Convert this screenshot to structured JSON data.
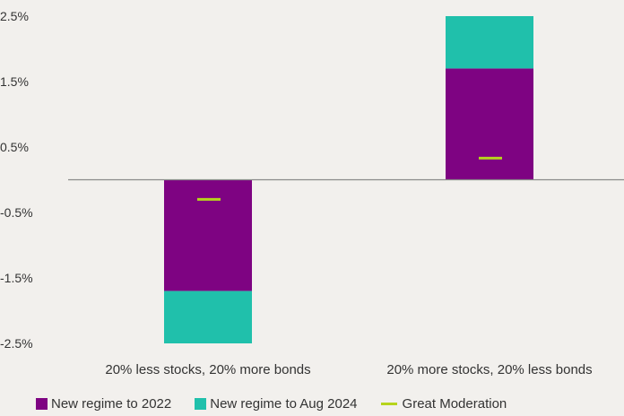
{
  "chart_data": {
    "type": "bar",
    "stacked": true,
    "categories": [
      "20% less stocks, 20% more bonds",
      "20% more stocks, 20% less bonds"
    ],
    "series": [
      {
        "name": "New regime to 2022",
        "values": [
          -1.7,
          1.7
        ],
        "color": "#7e0382"
      },
      {
        "name": "New regime to Aug 2024",
        "values": [
          -0.8,
          0.8
        ],
        "color": "#20c0ab"
      },
      {
        "name": "Great Moderation",
        "values": [
          -0.3,
          0.33
        ],
        "color": "#b6d41c",
        "marker": "dash"
      }
    ],
    "yticks": [
      "2.5%",
      "1.5%",
      "0.5%",
      "-0.5%",
      "-1.5%",
      "-2.5%"
    ],
    "ytick_values": [
      2.5,
      1.5,
      0.5,
      -0.5,
      -1.5,
      -2.5
    ],
    "ylim": [
      -2.5,
      2.5
    ],
    "xlabel": "",
    "ylabel": "",
    "title": "",
    "legend_position": "bottom",
    "grid": false
  }
}
